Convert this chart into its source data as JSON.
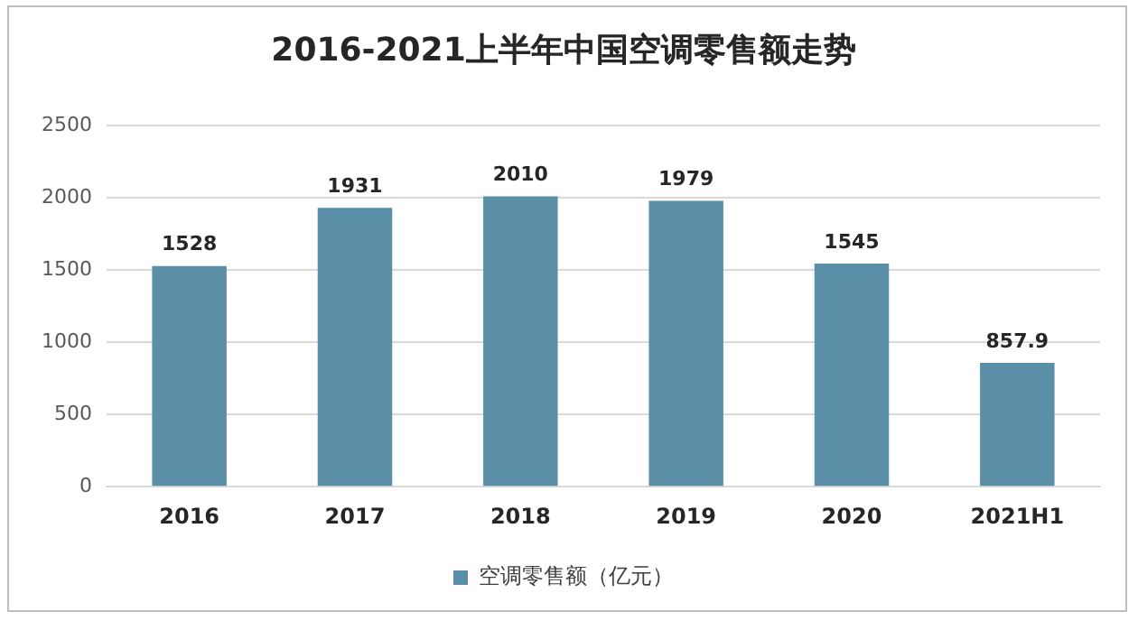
{
  "chart_data": {
    "type": "bar",
    "title": "2016-2021上半年中国空调零售额走势",
    "categories": [
      "2016",
      "2017",
      "2018",
      "2019",
      "2020",
      "2021H1"
    ],
    "series": [
      {
        "name": "空调零售额（亿元）",
        "color": "#5b8fa8",
        "values": [
          1528,
          1931,
          2010,
          1979,
          1545,
          857.9
        ]
      }
    ],
    "ylim": [
      0,
      2500
    ],
    "yticks": [
      0,
      500,
      1000,
      1500,
      2000,
      2500
    ],
    "grid": "y",
    "legend": "bottom",
    "data_labels": true
  }
}
